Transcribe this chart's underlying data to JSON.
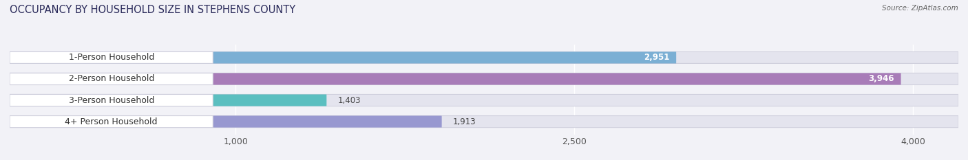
{
  "title": "OCCUPANCY BY HOUSEHOLD SIZE IN STEPHENS COUNTY",
  "source": "Source: ZipAtlas.com",
  "categories": [
    "1-Person Household",
    "2-Person Household",
    "3-Person Household",
    "4+ Person Household"
  ],
  "values": [
    2951,
    3946,
    1403,
    1913
  ],
  "bar_colors": [
    "#7bafd4",
    "#a87cb8",
    "#5bbfc0",
    "#9898d0"
  ],
  "label_colors": [
    "white",
    "white",
    "black",
    "black"
  ],
  "x_min": 0,
  "x_max": 4200,
  "xticks": [
    1000,
    2500,
    4000
  ],
  "background_color": "#f2f2f7",
  "bar_bg_color": "#e4e4ee",
  "bar_border_color": "#d0d0dd",
  "title_fontsize": 10.5,
  "tick_fontsize": 9,
  "label_fontsize": 9,
  "value_fontsize": 8.5
}
